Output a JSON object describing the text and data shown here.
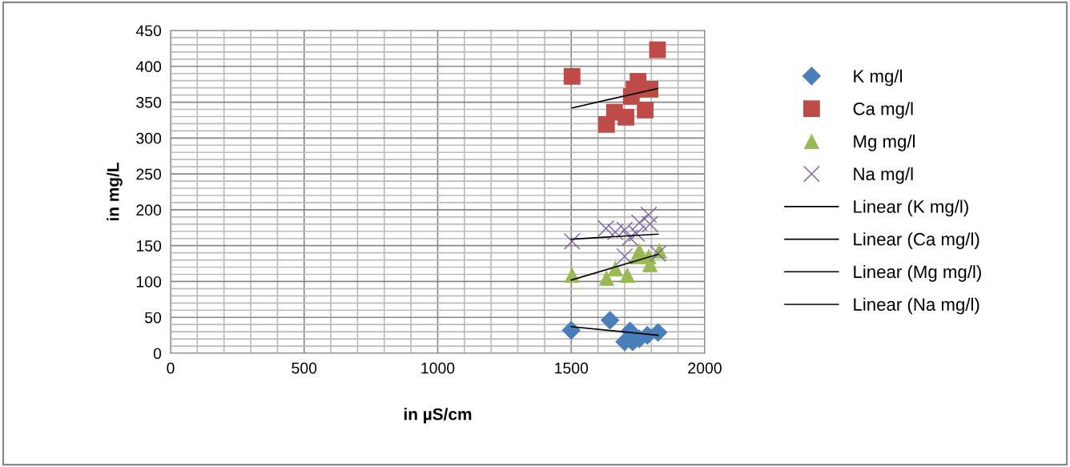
{
  "chart_data": {
    "type": "scatter",
    "xlabel": "in µS/cm",
    "ylabel": "in mg/L",
    "xlim": [
      0,
      2000
    ],
    "ylim": [
      0,
      450
    ],
    "xticks": [
      0,
      500,
      1000,
      1500,
      2000
    ],
    "yticks": [
      0,
      50,
      100,
      150,
      200,
      250,
      300,
      350,
      400,
      450
    ],
    "grid": true,
    "legend": "right",
    "series": [
      {
        "name": "K mg/l",
        "color": "#4a7ebb",
        "marker": "diamond",
        "x": [
          1500,
          1645,
          1720,
          1700,
          1730,
          1755,
          1785,
          1825
        ],
        "values": [
          32,
          46,
          31,
          16,
          16,
          20,
          25,
          29
        ]
      },
      {
        "name": "Ca mg/l",
        "color": "#be4b48",
        "marker": "square",
        "x": [
          1503,
          1823,
          1750,
          1795,
          1735,
          1725,
          1662,
          1705,
          1777,
          1632
        ],
        "values": [
          386,
          423,
          379,
          368,
          368,
          358,
          336,
          329,
          339,
          319
        ]
      },
      {
        "name": "Mg mg/l",
        "color": "#98b954",
        "marker": "triangle",
        "x": [
          1503,
          1632,
          1665,
          1710,
          1745,
          1755,
          1795,
          1830,
          1790
        ],
        "values": [
          109,
          105,
          118,
          109,
          135,
          143,
          124,
          143,
          135
        ]
      },
      {
        "name": "Na mg/l",
        "color": "#7d60a0",
        "marker": "cross",
        "x": [
          1503,
          1630,
          1665,
          1700,
          1720,
          1745,
          1790,
          1795,
          1700,
          1825,
          1755
        ],
        "values": [
          156,
          174,
          169,
          172,
          161,
          167,
          193,
          180,
          135,
          139,
          182
        ]
      },
      {
        "name": "Linear (K mg/l)",
        "type": "line",
        "color": "#000000",
        "marker": "none",
        "x": [
          1500,
          1825
        ],
        "values": [
          37,
          25
        ]
      },
      {
        "name": "Linear (Ca mg/l)",
        "type": "line",
        "color": "#000000",
        "marker": "none",
        "x": [
          1503,
          1823
        ],
        "values": [
          342,
          369
        ]
      },
      {
        "name": "Linear (Mg mg/l)",
        "type": "line",
        "color": "#000000",
        "marker": "none",
        "x": [
          1500,
          1825
        ],
        "values": [
          102,
          138
        ]
      },
      {
        "name": "Linear (Na mg/l)",
        "type": "line",
        "color": "#000000",
        "marker": "none",
        "x": [
          1500,
          1825
        ],
        "values": [
          159,
          166
        ]
      }
    ]
  }
}
